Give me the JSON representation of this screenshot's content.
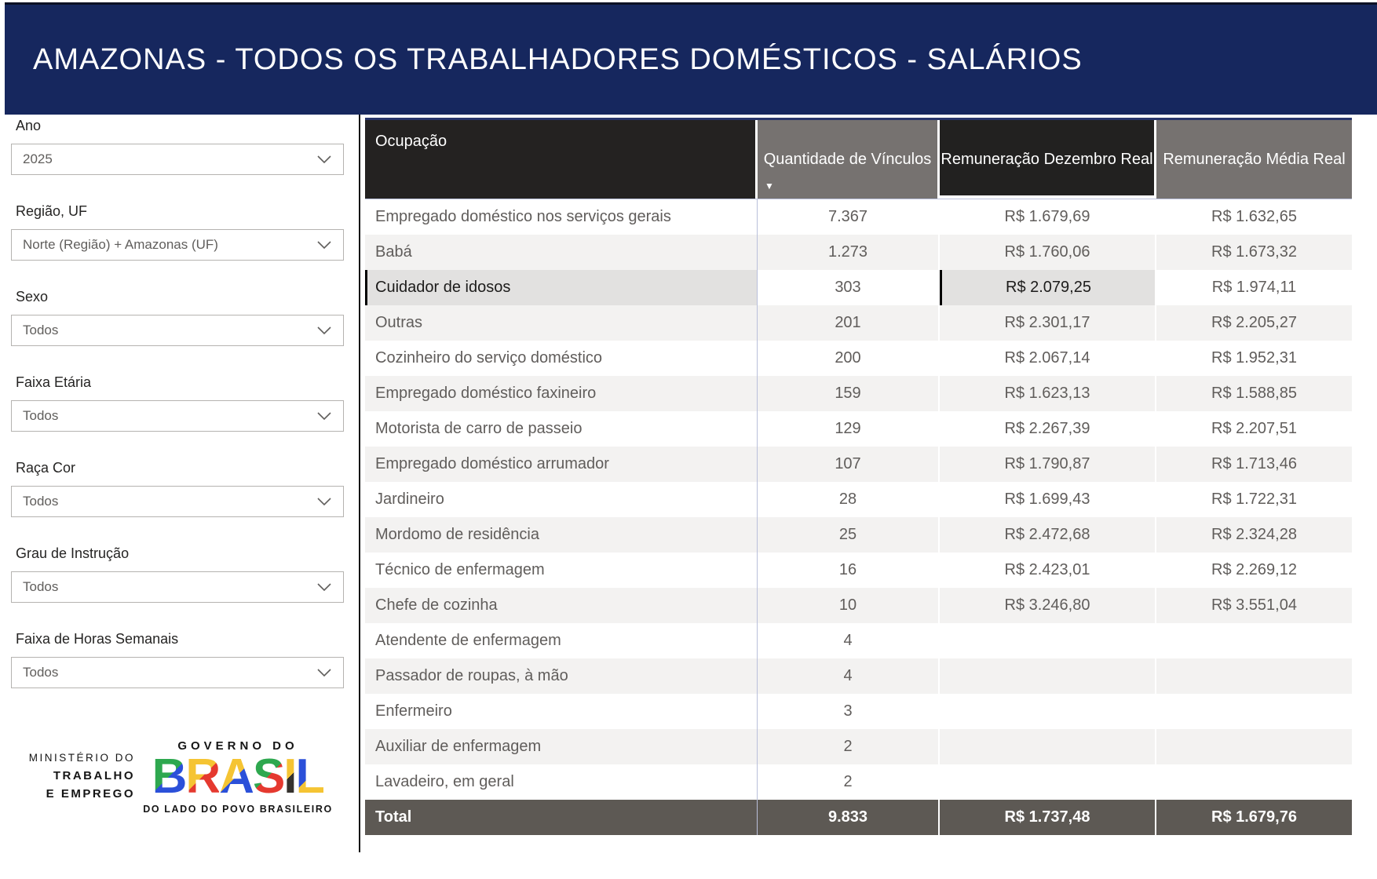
{
  "banner": {
    "title": "AMAZONAS - TODOS OS TRABALHADORES DOMÉSTICOS - SALÁRIOS",
    "bg_color": "#16275e"
  },
  "filters": [
    {
      "label": "Ano",
      "value": "2025"
    },
    {
      "label": "Região, UF",
      "value": "Norte (Região) + Amazonas (UF)"
    },
    {
      "label": "Sexo",
      "value": "Todos"
    },
    {
      "label": "Faixa Etária",
      "value": "Todos"
    },
    {
      "label": "Raça Cor",
      "value": "Todos"
    },
    {
      "label": "Grau de Instrução",
      "value": "Todos"
    },
    {
      "label": "Faixa de Horas Semanais",
      "value": "Todos"
    }
  ],
  "footer_logos": {
    "ministry_lines": [
      "MINISTÉRIO DO",
      "TRABALHO",
      "E EMPREGO"
    ],
    "governo_top": "GOVERNO DO",
    "brasil_letters": [
      {
        "ch": "B",
        "c1": "#2ea84f",
        "c2": "#2b50d9"
      },
      {
        "ch": "R",
        "c1": "#f5c433",
        "c2": "#e5392f"
      },
      {
        "ch": "A",
        "c1": "#f5c433",
        "c2": "#2b50d9"
      },
      {
        "ch": "S",
        "c1": "#2ea84f",
        "c2": "#e5392f"
      },
      {
        "ch": "I",
        "c1": "#f5c433",
        "c2": "#35322e"
      },
      {
        "ch": "L",
        "c1": "#2b50d9",
        "c2": "#f5c433"
      }
    ],
    "tagline": "DO LADO DO POVO BRASILEIRO"
  },
  "table": {
    "columns": [
      "Ocupação",
      "Quantidade de Vínculos",
      "Remuneração Dezembro Real",
      "Remuneração Média Real"
    ],
    "sort_icon": "▼",
    "selected_row_index": 2,
    "rows": [
      [
        "Empregado doméstico nos serviços gerais",
        "7.367",
        "R$ 1.679,69",
        "R$ 1.632,65"
      ],
      [
        "Babá",
        "1.273",
        "R$ 1.760,06",
        "R$ 1.673,32"
      ],
      [
        "Cuidador de idosos",
        "303",
        "R$ 2.079,25",
        "R$ 1.974,11"
      ],
      [
        "Outras",
        "201",
        "R$ 2.301,17",
        "R$ 2.205,27"
      ],
      [
        "Cozinheiro do serviço doméstico",
        "200",
        "R$ 2.067,14",
        "R$ 1.952,31"
      ],
      [
        "Empregado doméstico faxineiro",
        "159",
        "R$ 1.623,13",
        "R$ 1.588,85"
      ],
      [
        "Motorista de carro de passeio",
        "129",
        "R$ 2.267,39",
        "R$ 2.207,51"
      ],
      [
        "Empregado doméstico arrumador",
        "107",
        "R$ 1.790,87",
        "R$ 1.713,46"
      ],
      [
        "Jardineiro",
        "28",
        "R$ 1.699,43",
        "R$ 1.722,31"
      ],
      [
        "Mordomo de residência",
        "25",
        "R$ 2.472,68",
        "R$ 2.324,28"
      ],
      [
        "Técnico de enfermagem",
        "16",
        "R$ 2.423,01",
        "R$ 2.269,12"
      ],
      [
        "Chefe de cozinha",
        "10",
        "R$ 3.246,80",
        "R$ 3.551,04"
      ],
      [
        "Atendente de enfermagem",
        "4",
        "",
        ""
      ],
      [
        "Passador de roupas, à mão",
        "4",
        "",
        ""
      ],
      [
        "Enfermeiro",
        "3",
        "",
        ""
      ],
      [
        "Auxiliar de enfermagem",
        "2",
        "",
        ""
      ],
      [
        "Lavadeiro, em geral",
        "2",
        "",
        ""
      ]
    ],
    "total": [
      "Total",
      "9.833",
      "R$ 1.737,48",
      "R$ 1.679,76"
    ]
  },
  "colors": {
    "banner_navy": "#16275e",
    "header_dark": "#242221",
    "header_gray": "#767270",
    "total_row": "#5d5954",
    "row_alt": "#f3f2f1",
    "selected_cell": "#e2e1e0",
    "body_text": "#605d5b",
    "grid_blue": "#b9bfda"
  }
}
